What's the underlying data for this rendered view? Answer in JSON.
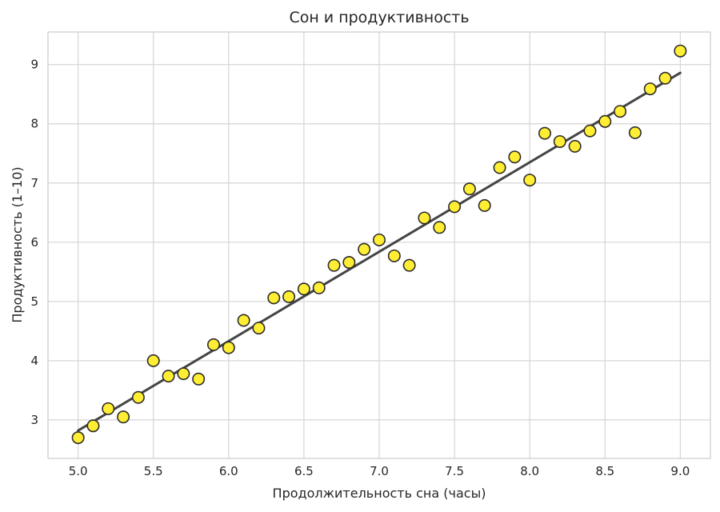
{
  "chart_data": {
    "type": "scatter",
    "title": "Сон и продуктивность",
    "xlabel": "Продолжительность сна (часы)",
    "ylabel": "Продуктивность (1–10)",
    "xlim": [
      4.8,
      9.2
    ],
    "ylim": [
      2.35,
      9.55
    ],
    "xticks": [
      "5.0",
      "5.5",
      "6.0",
      "6.5",
      "7.0",
      "7.5",
      "8.0",
      "8.5",
      "9.0"
    ],
    "yticks": [
      "3",
      "4",
      "5",
      "6",
      "7",
      "8",
      "9"
    ],
    "grid": true,
    "colors": {
      "point_fill": "#ffee33",
      "point_edge": "#2b2b2b",
      "trend_line": "#444444"
    },
    "series": [
      {
        "x": [
          5.0,
          5.1,
          5.2,
          5.3,
          5.4,
          5.5,
          5.6,
          5.7,
          5.8,
          5.9,
          6.0,
          6.1,
          6.2,
          6.3,
          6.4,
          6.5,
          6.6,
          6.7,
          6.8,
          6.9,
          7.0,
          7.1,
          7.2,
          7.3,
          7.4,
          7.5,
          7.6,
          7.7,
          7.8,
          7.9,
          8.0,
          8.1,
          8.2,
          8.3,
          8.4,
          8.5,
          8.6,
          8.7,
          8.8,
          8.9,
          9.0
        ],
        "y": [
          2.7,
          2.9,
          3.19,
          3.05,
          3.38,
          4.0,
          3.74,
          3.78,
          3.69,
          4.27,
          4.22,
          4.68,
          4.55,
          5.06,
          5.08,
          5.21,
          5.23,
          5.61,
          5.66,
          5.88,
          6.04,
          5.77,
          5.61,
          6.41,
          6.25,
          6.6,
          6.9,
          6.62,
          7.26,
          7.44,
          7.05,
          7.84,
          7.7,
          7.62,
          7.88,
          8.04,
          8.21,
          7.85,
          8.59,
          8.77,
          9.23
        ]
      }
    ],
    "trend_line": {
      "x": [
        5.0,
        9.0
      ],
      "y": [
        2.82,
        8.86
      ]
    }
  }
}
